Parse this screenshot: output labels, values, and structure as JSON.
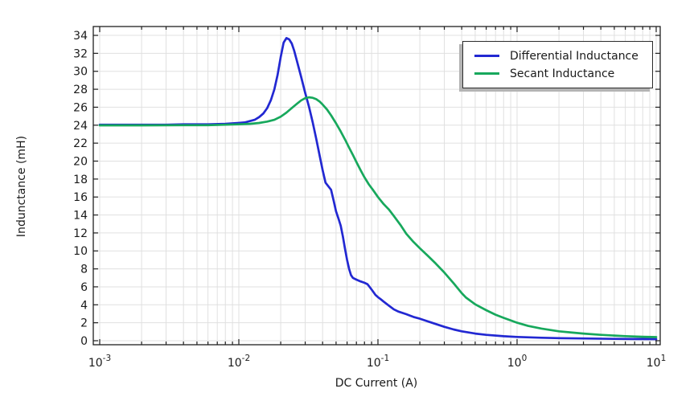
{
  "chart_data": {
    "type": "line",
    "title": "",
    "xlabel": "DC Current (A)",
    "ylabel": "Indunctance (mH)",
    "x_scale": "log",
    "xlim": [
      0.001,
      10
    ],
    "ylim": [
      0,
      34
    ],
    "grid": "on",
    "legend_position": "top-right",
    "x_ticks_exponents": [
      -3,
      -2,
      -1,
      0,
      1
    ],
    "y_ticks": [
      0,
      2,
      4,
      6,
      8,
      10,
      12,
      14,
      16,
      18,
      20,
      22,
      24,
      26,
      28,
      30,
      32,
      34
    ],
    "colors": {
      "differential": "#2228d2",
      "secant": "#17a85c",
      "grid": "#e0e0e0",
      "frame": "#1f1f1f",
      "text": "#1a1a1a",
      "background": "#ffffff",
      "legend_shadow": "#b4b4b4"
    },
    "series": [
      {
        "name": "Differential Inductance",
        "color": "#2228d2",
        "points": [
          [
            0.001,
            24.05
          ],
          [
            0.0015,
            24.05
          ],
          [
            0.002,
            24.05
          ],
          [
            0.003,
            24.05
          ],
          [
            0.004,
            24.1
          ],
          [
            0.005,
            24.1
          ],
          [
            0.006,
            24.1
          ],
          [
            0.008,
            24.15
          ],
          [
            0.01,
            24.25
          ],
          [
            0.011,
            24.3
          ],
          [
            0.012,
            24.45
          ],
          [
            0.013,
            24.6
          ],
          [
            0.014,
            24.9
          ],
          [
            0.015,
            25.3
          ],
          [
            0.016,
            25.9
          ],
          [
            0.017,
            26.8
          ],
          [
            0.018,
            28.0
          ],
          [
            0.019,
            29.6
          ],
          [
            0.02,
            31.6
          ],
          [
            0.021,
            33.2
          ],
          [
            0.022,
            33.7
          ],
          [
            0.023,
            33.55
          ],
          [
            0.024,
            33.1
          ],
          [
            0.025,
            32.3
          ],
          [
            0.026,
            31.3
          ],
          [
            0.028,
            29.4
          ],
          [
            0.03,
            27.6
          ],
          [
            0.032,
            26.0
          ],
          [
            0.034,
            24.3
          ],
          [
            0.036,
            22.5
          ],
          [
            0.038,
            20.7
          ],
          [
            0.04,
            19.0
          ],
          [
            0.042,
            17.6
          ],
          [
            0.044,
            17.2
          ],
          [
            0.046,
            16.8
          ],
          [
            0.048,
            15.6
          ],
          [
            0.05,
            14.4
          ],
          [
            0.052,
            13.6
          ],
          [
            0.054,
            12.8
          ],
          [
            0.056,
            11.6
          ],
          [
            0.058,
            10.2
          ],
          [
            0.06,
            9.0
          ],
          [
            0.062,
            8.0
          ],
          [
            0.064,
            7.3
          ],
          [
            0.066,
            7.0
          ],
          [
            0.07,
            6.8
          ],
          [
            0.075,
            6.6
          ],
          [
            0.08,
            6.45
          ],
          [
            0.084,
            6.3
          ],
          [
            0.088,
            5.9
          ],
          [
            0.092,
            5.5
          ],
          [
            0.096,
            5.1
          ],
          [
            0.1,
            4.85
          ],
          [
            0.105,
            4.6
          ],
          [
            0.11,
            4.35
          ],
          [
            0.12,
            3.9
          ],
          [
            0.13,
            3.5
          ],
          [
            0.14,
            3.25
          ],
          [
            0.16,
            2.95
          ],
          [
            0.18,
            2.65
          ],
          [
            0.2,
            2.45
          ],
          [
            0.25,
            1.95
          ],
          [
            0.3,
            1.55
          ],
          [
            0.35,
            1.25
          ],
          [
            0.4,
            1.05
          ],
          [
            0.5,
            0.8
          ],
          [
            0.6,
            0.65
          ],
          [
            0.8,
            0.5
          ],
          [
            1.0,
            0.42
          ],
          [
            1.5,
            0.33
          ],
          [
            2.0,
            0.29
          ],
          [
            3.0,
            0.25
          ],
          [
            5.0,
            0.21
          ],
          [
            7.0,
            0.19
          ],
          [
            10.0,
            0.18
          ]
        ]
      },
      {
        "name": "Secant Inductance",
        "color": "#17a85c",
        "points": [
          [
            0.001,
            23.98
          ],
          [
            0.002,
            23.98
          ],
          [
            0.004,
            24.0
          ],
          [
            0.006,
            24.0
          ],
          [
            0.008,
            24.05
          ],
          [
            0.01,
            24.1
          ],
          [
            0.012,
            24.15
          ],
          [
            0.014,
            24.25
          ],
          [
            0.016,
            24.4
          ],
          [
            0.018,
            24.6
          ],
          [
            0.02,
            24.95
          ],
          [
            0.022,
            25.4
          ],
          [
            0.024,
            25.9
          ],
          [
            0.026,
            26.35
          ],
          [
            0.028,
            26.75
          ],
          [
            0.03,
            27.0
          ],
          [
            0.032,
            27.1
          ],
          [
            0.034,
            27.05
          ],
          [
            0.036,
            26.9
          ],
          [
            0.038,
            26.65
          ],
          [
            0.04,
            26.3
          ],
          [
            0.043,
            25.75
          ],
          [
            0.046,
            25.1
          ],
          [
            0.05,
            24.2
          ],
          [
            0.054,
            23.3
          ],
          [
            0.058,
            22.4
          ],
          [
            0.062,
            21.5
          ],
          [
            0.066,
            20.7
          ],
          [
            0.07,
            19.9
          ],
          [
            0.075,
            19.0
          ],
          [
            0.08,
            18.2
          ],
          [
            0.086,
            17.4
          ],
          [
            0.092,
            16.8
          ],
          [
            0.1,
            16.0
          ],
          [
            0.11,
            15.2
          ],
          [
            0.12,
            14.6
          ],
          [
            0.13,
            13.9
          ],
          [
            0.145,
            12.9
          ],
          [
            0.16,
            11.9
          ],
          [
            0.18,
            11.0
          ],
          [
            0.2,
            10.3
          ],
          [
            0.23,
            9.4
          ],
          [
            0.26,
            8.6
          ],
          [
            0.3,
            7.6
          ],
          [
            0.35,
            6.4
          ],
          [
            0.4,
            5.3
          ],
          [
            0.43,
            4.8
          ],
          [
            0.5,
            4.05
          ],
          [
            0.6,
            3.4
          ],
          [
            0.7,
            2.9
          ],
          [
            0.8,
            2.55
          ],
          [
            1.0,
            2.0
          ],
          [
            1.2,
            1.65
          ],
          [
            1.5,
            1.35
          ],
          [
            2.0,
            1.05
          ],
          [
            2.5,
            0.9
          ],
          [
            3.0,
            0.8
          ],
          [
            4.0,
            0.65
          ],
          [
            5.0,
            0.57
          ],
          [
            6.0,
            0.51
          ],
          [
            8.0,
            0.44
          ],
          [
            10.0,
            0.4
          ]
        ]
      }
    ]
  }
}
